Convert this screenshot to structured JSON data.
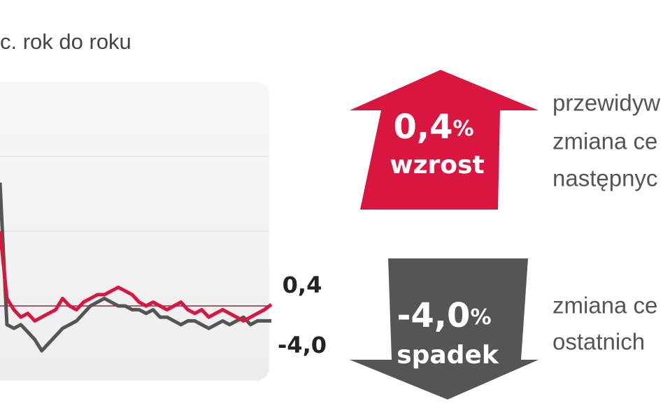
{
  "header": {
    "subtitle": "c. rok do roku"
  },
  "chart_data": {
    "type": "line",
    "series": [
      {
        "name": "red",
        "color": "#d9163f",
        "values": [
          20,
          2,
          -1,
          -3,
          -2,
          -4,
          -3,
          -2,
          -1,
          2,
          0,
          -1,
          1,
          2,
          3,
          3,
          4,
          5,
          4,
          3,
          1,
          0,
          1,
          0,
          -1,
          0,
          1,
          -1,
          -2,
          -1,
          -3,
          -2,
          -1,
          -2,
          -3,
          -4,
          -3,
          -2,
          -1,
          0.4
        ],
        "value_labels": [
          null,
          null,
          null,
          null,
          null,
          null,
          null,
          null,
          null,
          null,
          null,
          null,
          null,
          null,
          null,
          null,
          null,
          null,
          null,
          null,
          null,
          null,
          null,
          null,
          null,
          null,
          null,
          null,
          null,
          null,
          null,
          null,
          null,
          null,
          null,
          null,
          null,
          null,
          null,
          "0,4"
        ]
      },
      {
        "name": "gray",
        "color": "#555555",
        "values": [
          33,
          -5,
          -6,
          -5,
          -7,
          -9,
          -12,
          -10,
          -8,
          -6,
          -5,
          -4,
          -2,
          0,
          1,
          2,
          1,
          0,
          0,
          -1,
          -1,
          -2,
          -1,
          -3,
          -3,
          -4,
          -5,
          -4,
          -4,
          -5,
          -6,
          -5,
          -4,
          -5,
          -4,
          -3,
          -5,
          -4,
          -4,
          -4.0
        ],
        "value_labels": [
          null,
          null,
          null,
          null,
          null,
          null,
          null,
          null,
          null,
          null,
          null,
          null,
          null,
          null,
          null,
          null,
          null,
          null,
          null,
          null,
          null,
          null,
          null,
          null,
          null,
          null,
          null,
          null,
          null,
          null,
          null,
          null,
          null,
          null,
          null,
          null,
          null,
          null,
          null,
          "-4,0"
        ]
      }
    ],
    "ylim": [
      -20,
      60
    ]
  },
  "up_arrow": {
    "value": "0,4",
    "unit": "%",
    "label": "wzrost",
    "lines": [
      "przewidyw",
      "zmiana ce",
      "następnyc"
    ]
  },
  "down_arrow": {
    "value": "-4,0",
    "unit": "%",
    "label": "spadek",
    "lines": [
      "zmiana ce",
      "ostatnich"
    ]
  }
}
